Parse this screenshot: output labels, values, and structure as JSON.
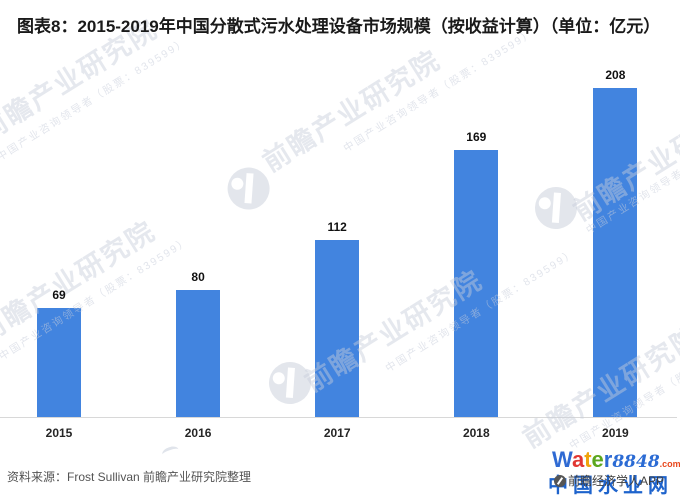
{
  "title": "图表8：2015-2019年中国分散式污水处理设备市场规模（按收益计算）（单位：亿元）",
  "source_note": "资料来源：Frost Sullivan 前瞻产业研究院整理",
  "chart_data": {
    "type": "bar",
    "categories": [
      "2015",
      "2016",
      "2017",
      "2018",
      "2019"
    ],
    "values": [
      69,
      80,
      112,
      169,
      208
    ],
    "title": "图表8：2015-2019年中国分散式污水处理设备市场规模（按收益计算）（单位：亿元）",
    "xlabel": "",
    "ylabel": "",
    "unit": "亿元",
    "ylim": [
      0,
      250
    ],
    "grid": false,
    "legend": false,
    "bar_color": "#4284DF",
    "axis_line_color": "#D8D8D8"
  },
  "watermark": {
    "brand_text": "前瞻产业研究院",
    "sub_text": "中国产业咨询领导者（股票：839599）",
    "icon": "qianzhan-eye-icon"
  },
  "footer_logo": {
    "water_letters": [
      {
        "ch": "W",
        "color": "#2F6AD3"
      },
      {
        "ch": "a",
        "color": "#E13632"
      },
      {
        "ch": "t",
        "color": "#F0A40B"
      },
      {
        "ch": "e",
        "color": "#5CA71E"
      },
      {
        "ch": "r",
        "color": "#2F6AD3"
      }
    ],
    "num": "8848",
    "com": ".com",
    "cn_text": "中国水业网",
    "overlay": "前瞻经济学人APP"
  }
}
